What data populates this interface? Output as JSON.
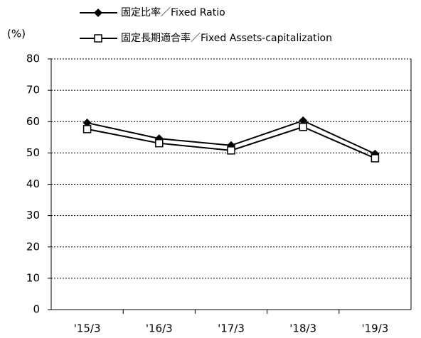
{
  "chart_data": {
    "type": "line",
    "y_label": "(%)",
    "categories": [
      "'15/3",
      "'16/3",
      "'17/3",
      "'18/3",
      "'19/3"
    ],
    "series": [
      {
        "name": "固定比率／Fixed Ratio",
        "color": "#000000",
        "marker": "diamond",
        "values": [
          59.6,
          54.6,
          52.4,
          60.3,
          49.7
        ]
      },
      {
        "name": "固定長期適合率／Fixed Assets-capitalization",
        "color": "#000000",
        "marker": "square",
        "values": [
          57.6,
          53.1,
          50.8,
          58.3,
          48.3
        ]
      }
    ],
    "ylim": [
      0,
      80
    ],
    "yticks": [
      0,
      10,
      20,
      30,
      40,
      50,
      60,
      70,
      80
    ],
    "grid": true
  }
}
